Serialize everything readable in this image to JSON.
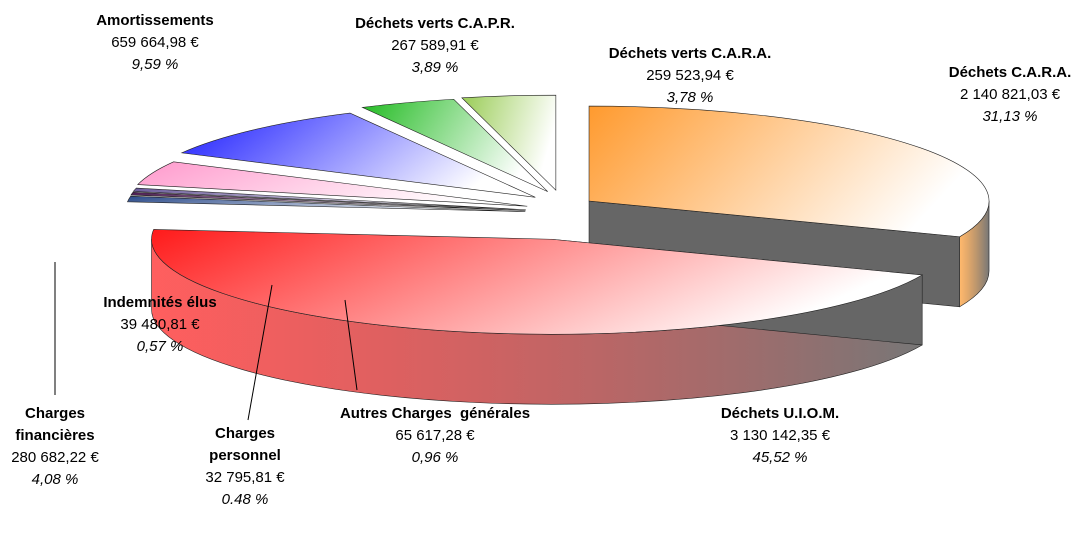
{
  "chart_data": {
    "type": "pie3d",
    "categories": [
      "Déchets C.A.R.A.",
      "Déchets U.I.O.M.",
      "Autres Charges  générales",
      "Charges personnel",
      "Indemnités élus",
      "Charges financières",
      "Amortissements",
      "Déchets verts C.A.P.R.",
      "Déchets verts C.A.R.A."
    ],
    "values": [
      2140821.03,
      3130142.35,
      65617.28,
      32795.81,
      39480.81,
      280682.22,
      659664.98,
      267589.91,
      259523.94
    ],
    "value_labels": [
      "2 140 821,03 €",
      "3 130 142,35 €",
      "65 617,28 €",
      "32 795,81 €",
      "39 480,81 €",
      "280 682,22 €",
      "659 664,98 €",
      "267 589,91 €",
      "259 523,94 €"
    ],
    "percents": [
      31.13,
      45.52,
      0.96,
      0.48,
      0.57,
      4.08,
      9.59,
      3.89,
      3.78
    ],
    "percent_labels": [
      "31,13 %",
      "45,52 %",
      "0,96 %",
      "0.48 %",
      "0,57 %",
      "4,08 %",
      "9,59 %",
      "3,89 %",
      "3,78 %"
    ],
    "colors": [
      "#ff9a2e",
      "#ff1a1a",
      "#2a4a8a",
      "#4a1a50",
      "#6a5a9a",
      "#ff99cc",
      "#1a1aff",
      "#22bb22",
      "#99cc55"
    ]
  }
}
